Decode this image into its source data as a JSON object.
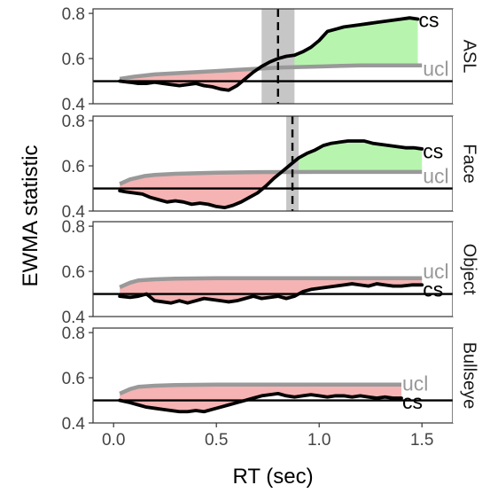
{
  "chart_data": {
    "type": "line",
    "xlabel": "RT (sec)",
    "ylabel": "EWMA statistic",
    "xlim": [
      -0.1,
      1.65
    ],
    "ylim": [
      0.4,
      0.82
    ],
    "x_ticks": [
      0.0,
      0.5,
      1.0,
      1.5
    ],
    "x_tick_labels": [
      "0.0",
      "0.5",
      "1.0",
      "1.5"
    ],
    "y_ticks": [
      0.4,
      0.6,
      0.8
    ],
    "y_tick_labels": [
      "0.4",
      "0.6",
      "0.8"
    ],
    "baseline": 0.5,
    "grid": false,
    "legend": "none",
    "colors": {
      "cs": "#000000",
      "ucl": "#999999",
      "above_fill": "#b7f5ae",
      "below_fill": "#f5b3b3",
      "threshold_band": "#c6c6c6",
      "panel_border": "#333333",
      "strip_background": "#ffffff"
    },
    "line_labels": {
      "cs": "cs",
      "ucl": "ucl"
    },
    "panels": [
      {
        "strip": "ASL",
        "threshold_x": 0.8,
        "threshold_band": [
          0.72,
          0.88
        ],
        "cs_label_y": 0.77,
        "ucl_label_y": 0.555,
        "series": [
          {
            "name": "cs",
            "x": [
              0.03,
              0.08,
              0.12,
              0.16,
              0.2,
              0.24,
              0.28,
              0.32,
              0.36,
              0.4,
              0.44,
              0.48,
              0.52,
              0.56,
              0.6,
              0.64,
              0.68,
              0.72,
              0.76,
              0.8,
              0.84,
              0.88,
              0.92,
              0.96,
              1.0,
              1.04,
              1.08,
              1.12,
              1.16,
              1.2,
              1.24,
              1.28,
              1.32,
              1.36,
              1.4,
              1.44,
              1.48
            ],
            "y": [
              0.5,
              0.495,
              0.49,
              0.49,
              0.495,
              0.49,
              0.485,
              0.48,
              0.485,
              0.49,
              0.48,
              0.475,
              0.465,
              0.46,
              0.48,
              0.51,
              0.54,
              0.565,
              0.585,
              0.6,
              0.61,
              0.615,
              0.63,
              0.65,
              0.68,
              0.72,
              0.73,
              0.74,
              0.745,
              0.75,
              0.755,
              0.76,
              0.765,
              0.77,
              0.775,
              0.78,
              0.775
            ]
          },
          {
            "name": "ucl",
            "x": [
              0.03,
              0.1,
              0.2,
              0.3,
              0.4,
              0.5,
              0.6,
              0.7,
              0.8,
              1.0,
              1.2,
              1.5
            ],
            "y": [
              0.51,
              0.52,
              0.53,
              0.535,
              0.54,
              0.545,
              0.55,
              0.555,
              0.56,
              0.565,
              0.57,
              0.57
            ]
          }
        ]
      },
      {
        "strip": "Face",
        "threshold_x": 0.87,
        "threshold_band": [
          0.84,
          0.9
        ],
        "cs_label_y": 0.665,
        "ucl_label_y": 0.555,
        "series": [
          {
            "name": "cs",
            "x": [
              0.03,
              0.06,
              0.1,
              0.14,
              0.18,
              0.22,
              0.26,
              0.3,
              0.34,
              0.38,
              0.42,
              0.46,
              0.5,
              0.54,
              0.58,
              0.62,
              0.66,
              0.7,
              0.74,
              0.78,
              0.82,
              0.86,
              0.9,
              0.94,
              0.98,
              1.02,
              1.06,
              1.1,
              1.14,
              1.18,
              1.22,
              1.26,
              1.3,
              1.34,
              1.38,
              1.42,
              1.46,
              1.5
            ],
            "y": [
              0.49,
              0.485,
              0.48,
              0.475,
              0.46,
              0.45,
              0.44,
              0.445,
              0.44,
              0.43,
              0.435,
              0.43,
              0.42,
              0.415,
              0.425,
              0.44,
              0.46,
              0.48,
              0.51,
              0.545,
              0.575,
              0.605,
              0.635,
              0.655,
              0.67,
              0.69,
              0.7,
              0.705,
              0.71,
              0.71,
              0.71,
              0.7,
              0.695,
              0.69,
              0.685,
              0.68,
              0.68,
              0.675
            ]
          },
          {
            "name": "ucl",
            "x": [
              0.03,
              0.08,
              0.15,
              0.2,
              0.3,
              0.5,
              0.7,
              1.0,
              1.5
            ],
            "y": [
              0.52,
              0.54,
              0.555,
              0.56,
              0.565,
              0.57,
              0.572,
              0.573,
              0.573
            ]
          }
        ]
      },
      {
        "strip": "Object",
        "threshold_x": null,
        "threshold_band": null,
        "cs_label_y": 0.52,
        "ucl_label_y": 0.6,
        "series": [
          {
            "name": "cs",
            "x": [
              0.03,
              0.08,
              0.12,
              0.16,
              0.2,
              0.24,
              0.28,
              0.32,
              0.36,
              0.4,
              0.44,
              0.48,
              0.52,
              0.56,
              0.6,
              0.64,
              0.68,
              0.72,
              0.76,
              0.8,
              0.84,
              0.88,
              0.92,
              0.96,
              1.0,
              1.04,
              1.08,
              1.12,
              1.16,
              1.2,
              1.24,
              1.28,
              1.32,
              1.36,
              1.4,
              1.45,
              1.5
            ],
            "y": [
              0.49,
              0.485,
              0.49,
              0.5,
              0.47,
              0.465,
              0.46,
              0.47,
              0.46,
              0.47,
              0.48,
              0.475,
              0.47,
              0.465,
              0.47,
              0.48,
              0.49,
              0.48,
              0.485,
              0.49,
              0.48,
              0.49,
              0.51,
              0.52,
              0.525,
              0.53,
              0.535,
              0.54,
              0.545,
              0.54,
              0.535,
              0.545,
              0.54,
              0.535,
              0.535,
              0.54,
              0.54
            ]
          },
          {
            "name": "ucl",
            "x": [
              0.03,
              0.08,
              0.12,
              0.2,
              0.3,
              0.5,
              0.7,
              1.0,
              1.5
            ],
            "y": [
              0.53,
              0.55,
              0.56,
              0.565,
              0.568,
              0.57,
              0.57,
              0.57,
              0.57
            ]
          }
        ]
      },
      {
        "strip": "Bullseye",
        "threshold_x": null,
        "threshold_band": null,
        "cs_label_y": 0.495,
        "ucl_label_y": 0.575,
        "series": [
          {
            "name": "cs",
            "x": [
              0.03,
              0.08,
              0.12,
              0.16,
              0.2,
              0.24,
              0.28,
              0.32,
              0.36,
              0.4,
              0.44,
              0.48,
              0.52,
              0.56,
              0.6,
              0.64,
              0.68,
              0.72,
              0.76,
              0.8,
              0.84,
              0.88,
              0.92,
              0.96,
              1.0,
              1.04,
              1.08,
              1.12,
              1.16,
              1.2,
              1.24,
              1.28,
              1.32,
              1.36,
              1.4
            ],
            "y": [
              0.5,
              0.49,
              0.48,
              0.47,
              0.465,
              0.46,
              0.455,
              0.45,
              0.45,
              0.455,
              0.45,
              0.46,
              0.47,
              0.48,
              0.49,
              0.5,
              0.51,
              0.52,
              0.525,
              0.53,
              0.52,
              0.515,
              0.52,
              0.525,
              0.52,
              0.515,
              0.52,
              0.52,
              0.515,
              0.52,
              0.515,
              0.51,
              0.515,
              0.51,
              0.51
            ]
          },
          {
            "name": "ucl",
            "x": [
              0.03,
              0.08,
              0.12,
              0.2,
              0.3,
              0.5,
              0.7,
              1.0,
              1.4
            ],
            "y": [
              0.53,
              0.55,
              0.56,
              0.565,
              0.568,
              0.57,
              0.57,
              0.57,
              0.57
            ]
          }
        ]
      }
    ]
  }
}
